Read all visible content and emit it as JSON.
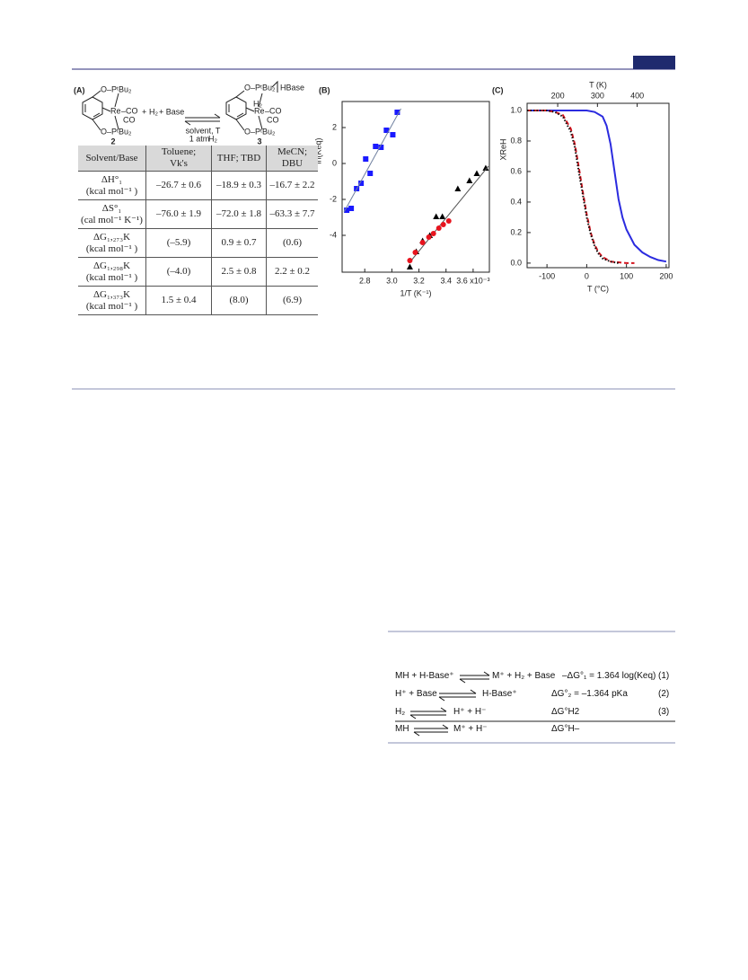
{
  "figure": {
    "scheme": {
      "panel_label": "(A)",
      "texts": [
        "O–PᵗBu₂",
        "Re",
        "–CO",
        "CO",
        "O–PᵗBu₂",
        "2",
        "+",
        "H₂",
        "+ Base",
        "solvent, T",
        "1 atm ",
        "H₂",
        "O–PᵗBu₂",
        "HBase",
        "H₂",
        "Re",
        "–CO",
        "CO",
        "O–PᵗBu₂",
        "3"
      ]
    },
    "table": {
      "header": [
        [
          "Solvent/Base"
        ],
        [
          "Toluene;",
          "Vk's"
        ],
        [
          "THF; TBD"
        ],
        [
          "MeCN;",
          "DBU"
        ]
      ],
      "rows": [
        [
          [
            "ΔH°₁",
            "(kcal mol⁻¹ )"
          ],
          "–26.7 ± 0.6",
          "–18.9 ± 0.3",
          "–16.7 ± 2.2"
        ],
        [
          [
            "ΔS°₁",
            "(cal mol⁻¹ K⁻¹)"
          ],
          "–76.0 ± 1.9",
          "–72.0 ± 1.8",
          "–63.3 ± 7.7"
        ],
        [
          [
            "ΔG₁,₂₇₃K",
            "(kcal mol⁻¹ )"
          ],
          "(–5.9)",
          "0.9 ± 0.7",
          "(0.6)"
        ],
        [
          [
            "ΔG₁,₂₉₈K",
            "(kcal mol⁻¹ )"
          ],
          "(–4.0)",
          "2.5 ± 0.8",
          "2.2 ± 0.2"
        ],
        [
          [
            "ΔG₁,₃₇₃K",
            "(kcal mol⁻¹ )"
          ],
          "1.5 ± 0.4",
          "(8.0)",
          "(6.9)"
        ]
      ]
    }
  },
  "chart_data": [
    {
      "type": "scatter",
      "label": "(B)",
      "x_label": "1/T (K⁻¹)",
      "y_label": "ln(Keq)",
      "xlim": [
        2.633,
        3.72
      ],
      "ylim": [
        -6.05,
        3.45
      ],
      "xticks": [
        2.8,
        {
          "value": 3,
          "label": "3.0"
        },
        3.2,
        3.4,
        {
          "value": 3.6,
          "label": "3.6 x10⁻³"
        }
      ],
      "yticks": [
        2,
        0,
        -2,
        -4
      ],
      "series": [
        {
          "color": "#1a1aff",
          "marker": "square",
          "line": false,
          "x": [
            2.667,
            2.7,
            2.74,
            2.773,
            2.807,
            2.84,
            2.88,
            2.92,
            2.96,
            3.007,
            3.04
          ],
          "values": [
            -2.6,
            -2.5,
            -1.4,
            -1.1,
            0.25,
            -0.55,
            0.95,
            0.9,
            1.85,
            1.6,
            2.85
          ]
        },
        {
          "color": "#6f7f9f",
          "marker": "none",
          "line": true,
          "x": [
            2.647,
            3.067
          ],
          "values": [
            -2.7,
            3.05
          ]
        },
        {
          "color": "#000000",
          "marker": "triangle",
          "line": false,
          "x": [
            3.133,
            3.18,
            3.227,
            3.28,
            3.327,
            3.373,
            3.487,
            3.573,
            3.627,
            3.693
          ],
          "values": [
            -5.75,
            -4.9,
            -4.3,
            -4.0,
            -2.95,
            -2.95,
            -1.4,
            -0.95,
            -0.55,
            -0.25
          ]
        },
        {
          "color": "#555555",
          "marker": "none",
          "line": true,
          "x": [
            3.127,
            3.713
          ],
          "values": [
            -5.55,
            -0.15
          ]
        },
        {
          "color": "#e8141e",
          "marker": "circle",
          "line": false,
          "x": [
            3.133,
            3.173,
            3.227,
            3.273,
            3.307,
            3.347,
            3.38,
            3.42
          ],
          "values": [
            -5.4,
            -4.95,
            -4.4,
            -4.1,
            -3.9,
            -3.6,
            -3.4,
            -3.2
          ]
        }
      ]
    },
    {
      "type": "line",
      "label": "(C)",
      "x_label": "T (°C)",
      "x2_label": "T (K)",
      "y_label": "XReH",
      "xlim": [
        -150,
        207
      ],
      "x2lim": [
        123,
        480
      ],
      "ylim": [
        -0.03,
        1.047
      ],
      "xticks": [
        -100,
        0,
        100,
        200
      ],
      "x2ticks": [
        200,
        300,
        400
      ],
      "yticks": [
        {
          "value": 0,
          "label": "0.0"
        },
        0.2,
        0.4,
        0.6,
        0.8,
        {
          "value": 1,
          "label": "1.0"
        }
      ],
      "series": [
        {
          "color": "#2b2bdf",
          "dash": "none",
          "width": 2,
          "x": [
            -150,
            -100,
            -50,
            0,
            20,
            40,
            50,
            60,
            70,
            80,
            90,
            100,
            120,
            140,
            160,
            180,
            200
          ],
          "values": [
            1,
            1,
            1,
            1,
            0.99,
            0.96,
            0.9,
            0.78,
            0.6,
            0.42,
            0.3,
            0.22,
            0.12,
            0.07,
            0.04,
            0.02,
            0.01
          ]
        },
        {
          "color": "#d4141e",
          "dash": "5 3",
          "width": 2,
          "x": [
            -150,
            -100,
            -80,
            -60,
            -40,
            -30,
            -20,
            -10,
            0,
            10,
            20,
            30,
            40,
            60,
            80,
            100,
            120
          ],
          "values": [
            1,
            1,
            0.99,
            0.97,
            0.88,
            0.78,
            0.63,
            0.47,
            0.32,
            0.2,
            0.12,
            0.07,
            0.04,
            0.01,
            0.005,
            0,
            0
          ]
        },
        {
          "color": "#111111",
          "dash": "1.5 2",
          "width": 2,
          "x": [
            -150,
            -100,
            -80,
            -60,
            -40,
            -30,
            -20,
            -10,
            0,
            10,
            20,
            30,
            40,
            60,
            80
          ],
          "values": [
            1,
            1,
            0.99,
            0.96,
            0.86,
            0.76,
            0.6,
            0.45,
            0.3,
            0.19,
            0.11,
            0.06,
            0.03,
            0.01,
            0
          ]
        }
      ]
    }
  ],
  "equations": {
    "rows": [
      {
        "left": "MH + H-Base⁺",
        "right": "M⁺ + H₂ + Base",
        "expr": "–ΔG°₁ = 1.364 log(Keq)",
        "number": "(1)"
      },
      {
        "left": "H⁺ + Base",
        "right": "H-Base⁺",
        "expr": "ΔG°₂ = –1.364 pKa",
        "number": "(2)"
      },
      {
        "left": "H₂",
        "right": "H⁺ + H⁻",
        "expr": "ΔG°H2",
        "number": "(3)"
      },
      {
        "left": "MH",
        "right": "M⁺ + H⁻",
        "expr": "ΔG°H–"
      }
    ]
  }
}
